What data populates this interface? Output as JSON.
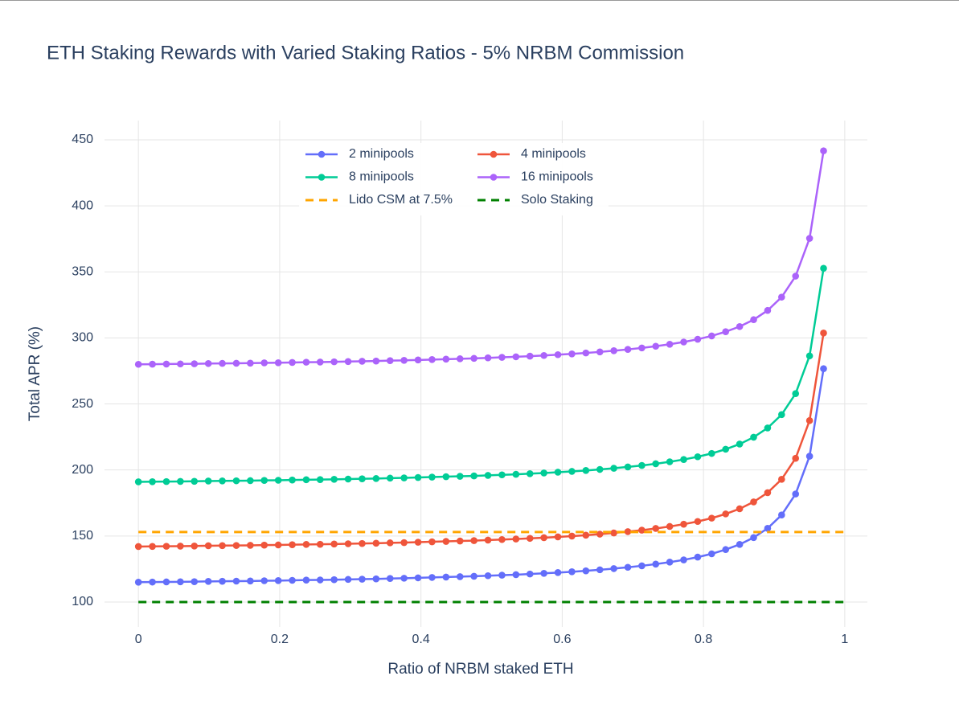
{
  "chart_data": {
    "type": "line",
    "title": "ETH Staking Rewards with Varied Staking Ratios - 5% NRBM Commission",
    "x_label": "Ratio of NRBM staked ETH",
    "y_label": "Total APR (%)",
    "xlim": [
      -0.048,
      1.032
    ],
    "ylim": [
      81.1,
      464.6
    ],
    "xticks": [
      0,
      0.2,
      0.4,
      0.6,
      0.8,
      1
    ],
    "yticks": [
      100,
      150,
      200,
      250,
      300,
      350,
      400,
      450
    ],
    "grid": true,
    "legend": "top",
    "x": [
      0,
      0.0198,
      0.0396,
      0.0594,
      0.0792,
      0.099,
      0.1188,
      0.1386,
      0.1584,
      0.1782,
      0.198,
      0.2178,
      0.2376,
      0.2573,
      0.2771,
      0.2969,
      0.3167,
      0.3365,
      0.3563,
      0.3761,
      0.3959,
      0.4157,
      0.4355,
      0.4553,
      0.4751,
      0.4949,
      0.5147,
      0.5345,
      0.5543,
      0.5741,
      0.5939,
      0.6137,
      0.6335,
      0.6533,
      0.6731,
      0.6929,
      0.7127,
      0.7324,
      0.7522,
      0.772,
      0.7918,
      0.8116,
      0.8314,
      0.8512,
      0.871,
      0.8908,
      0.9106,
      0.9304,
      0.9502,
      0.97
    ],
    "series": [
      {
        "name": "2 minipools",
        "color": "#636efa",
        "values": [
          115,
          115.1,
          115.2,
          115.3,
          115.4,
          115.6,
          115.7,
          115.8,
          115.9,
          116.1,
          116.2,
          116.4,
          116.6,
          116.7,
          116.9,
          117.1,
          117.3,
          117.5,
          117.8,
          118,
          118.3,
          118.6,
          118.9,
          119.2,
          119.5,
          119.9,
          120.3,
          120.7,
          121.2,
          121.7,
          122.3,
          122.9,
          123.6,
          124.4,
          125.3,
          126.3,
          127.4,
          128.7,
          130.2,
          131.9,
          134,
          136.5,
          139.7,
          143.6,
          148.8,
          155.8,
          165.9,
          181.8,
          210.4,
          276.7
        ]
      },
      {
        "name": "4 minipools",
        "color": "#ef553b",
        "values": [
          142,
          142.1,
          142.2,
          142.3,
          142.4,
          142.6,
          142.7,
          142.8,
          142.9,
          143.1,
          143.2,
          143.4,
          143.6,
          143.7,
          143.9,
          144.1,
          144.3,
          144.5,
          144.8,
          145,
          145.3,
          145.6,
          145.9,
          146.2,
          146.5,
          146.9,
          147.3,
          147.7,
          148.2,
          148.7,
          149.3,
          149.9,
          150.6,
          151.4,
          152.3,
          153.3,
          154.4,
          155.7,
          157.2,
          158.9,
          161,
          163.5,
          166.7,
          170.6,
          175.8,
          182.8,
          192.9,
          208.8,
          237.4,
          303.7
        ]
      },
      {
        "name": "8 minipools",
        "color": "#00cc96",
        "values": [
          191,
          191.1,
          191.2,
          191.3,
          191.4,
          191.6,
          191.7,
          191.8,
          191.9,
          192.1,
          192.2,
          192.4,
          192.6,
          192.7,
          192.9,
          193.1,
          193.3,
          193.5,
          193.8,
          194,
          194.3,
          194.6,
          194.9,
          195.2,
          195.5,
          195.9,
          196.3,
          196.7,
          197.2,
          197.7,
          198.3,
          198.9,
          199.6,
          200.4,
          201.3,
          202.3,
          203.4,
          204.7,
          206.2,
          207.9,
          210,
          212.5,
          215.7,
          219.6,
          224.8,
          231.8,
          241.9,
          257.8,
          286.4,
          352.7
        ]
      },
      {
        "name": "16 minipools",
        "color": "#ab63fa",
        "values": [
          280,
          280.1,
          280.2,
          280.3,
          280.4,
          280.6,
          280.7,
          280.8,
          280.9,
          281.1,
          281.2,
          281.4,
          281.6,
          281.7,
          281.9,
          282.1,
          282.3,
          282.5,
          282.8,
          283,
          283.3,
          283.6,
          283.9,
          284.2,
          284.5,
          284.9,
          285.3,
          285.7,
          286.2,
          286.7,
          287.3,
          287.9,
          288.6,
          289.4,
          290.3,
          291.3,
          292.4,
          293.7,
          295.2,
          296.9,
          299,
          301.5,
          304.7,
          308.6,
          313.8,
          320.8,
          330.9,
          346.8,
          375.4,
          441.7
        ]
      },
      {
        "name": "Lido CSM at 7.5%",
        "color": "#ffa500",
        "dash": true,
        "x": [
          0,
          1
        ],
        "values": [
          153,
          153
        ]
      },
      {
        "name": "Solo Staking",
        "color": "#008000",
        "dash": true,
        "x": [
          0,
          1
        ],
        "values": [
          100,
          100
        ]
      }
    ]
  }
}
